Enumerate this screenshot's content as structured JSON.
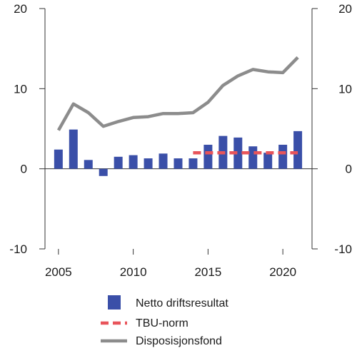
{
  "chart_data": {
    "type": "bar",
    "x": [
      2005,
      2006,
      2007,
      2008,
      2009,
      2010,
      2011,
      2012,
      2013,
      2014,
      2015,
      2016,
      2017,
      2018,
      2019,
      2020,
      2021
    ],
    "xticks": [
      2005,
      2010,
      2015,
      2020
    ],
    "xtick_labels": [
      "2005",
      "2010",
      "2015",
      "2020"
    ],
    "ylim": [
      -10,
      20
    ],
    "yticks": [
      -10,
      0,
      10,
      20
    ],
    "ytick_labels": [
      "-10",
      "0",
      "10",
      "20"
    ],
    "secondary_ytick_labels": [
      "-10",
      "0",
      "10",
      "20"
    ],
    "grid": false,
    "legend_position": "bottom",
    "series": [
      {
        "name": "Netto driftsresultat",
        "type": "bar",
        "color": "#3a4fa8",
        "x": [
          2005,
          2006,
          2007,
          2008,
          2009,
          2010,
          2011,
          2012,
          2013,
          2014,
          2015,
          2016,
          2017,
          2018,
          2019,
          2020,
          2021
        ],
        "values": [
          2.4,
          4.9,
          1.1,
          -0.9,
          1.5,
          1.7,
          1.3,
          1.9,
          1.3,
          1.3,
          3.0,
          4.1,
          3.9,
          2.8,
          2.0,
          3.0,
          4.7
        ]
      },
      {
        "name": "TBU-norm",
        "type": "line",
        "style": "dashed",
        "color": "#e8545a",
        "x": [
          2014,
          2015,
          2016,
          2017,
          2018,
          2019,
          2020,
          2021
        ],
        "values": [
          2.0,
          2.0,
          2.0,
          2.0,
          2.0,
          2.0,
          2.0,
          2.0
        ]
      },
      {
        "name": "Disposisjonsfond",
        "type": "line",
        "style": "solid",
        "color": "#8c8c8c",
        "x": [
          2005,
          2006,
          2007,
          2008,
          2009,
          2010,
          2011,
          2012,
          2013,
          2014,
          2015,
          2016,
          2017,
          2018,
          2019,
          2020,
          2021
        ],
        "values": [
          4.8,
          8.1,
          7.0,
          5.3,
          5.9,
          6.4,
          6.5,
          6.9,
          6.9,
          7.0,
          8.3,
          10.4,
          11.6,
          12.4,
          12.1,
          12.0,
          13.9
        ]
      }
    ]
  }
}
